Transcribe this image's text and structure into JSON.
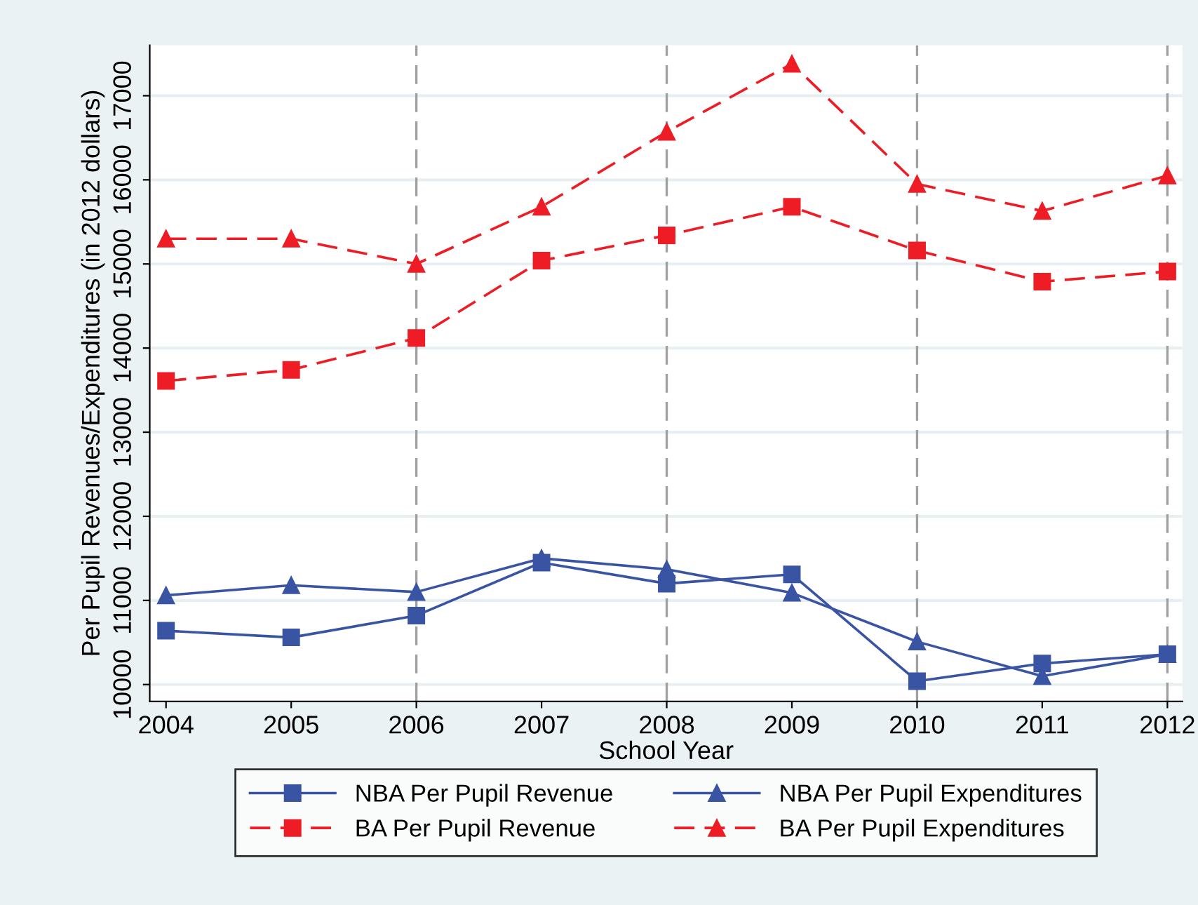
{
  "chart_data": {
    "type": "line",
    "xlabel": "School Year",
    "ylabel": "Per Pupil Revenues/Expenditures (in 2012 dollars)",
    "x": [
      2004,
      2005,
      2006,
      2007,
      2008,
      2009,
      2010,
      2011,
      2012
    ],
    "series": [
      {
        "name": "NBA Per Pupil Revenue",
        "color": "#3a54a4",
        "marker": "square",
        "line_style": "solid",
        "values": [
          10640,
          10560,
          10820,
          11450,
          11200,
          11310,
          10040,
          10250,
          10360
        ]
      },
      {
        "name": "NBA Per Pupil Expenditures",
        "color": "#3a54a4",
        "marker": "triangle",
        "line_style": "solid",
        "values": [
          11060,
          11180,
          11100,
          11500,
          11370,
          11090,
          10510,
          10100,
          10360
        ]
      },
      {
        "name": "BA Per Pupil Revenue",
        "color": "#ee1c25",
        "marker": "square",
        "line_style": "dashed",
        "values": [
          13610,
          13740,
          14120,
          15040,
          15340,
          15680,
          15160,
          14790,
          14910
        ]
      },
      {
        "name": "BA Per Pupil Expenditures",
        "color": "#ee1c25",
        "marker": "triangle",
        "line_style": "dashed",
        "values": [
          15300,
          15300,
          15000,
          15680,
          16570,
          17380,
          15950,
          15630,
          16050
        ]
      }
    ],
    "xlim": [
      2003.87,
      2012.12
    ],
    "ylim": [
      9800,
      17600
    ],
    "xticks": [
      2004,
      2005,
      2006,
      2007,
      2008,
      2009,
      2010,
      2011,
      2012
    ],
    "yticks": [
      10000,
      11000,
      12000,
      13000,
      14000,
      15000,
      16000,
      17000
    ],
    "ref_lines": [
      {
        "axis": "x",
        "value": 2006,
        "color": "#a0a0a0",
        "line_style": "dashed"
      },
      {
        "axis": "x",
        "value": 2008,
        "color": "#a0a0a0",
        "line_style": "dashed"
      },
      {
        "axis": "x",
        "value": 2010,
        "color": "#a0a0a0",
        "line_style": "dashed"
      },
      {
        "axis": "x",
        "value": 2012,
        "color": "#a0a0a0",
        "line_style": "dashed"
      }
    ],
    "grid": "y",
    "legend": "bottom"
  }
}
